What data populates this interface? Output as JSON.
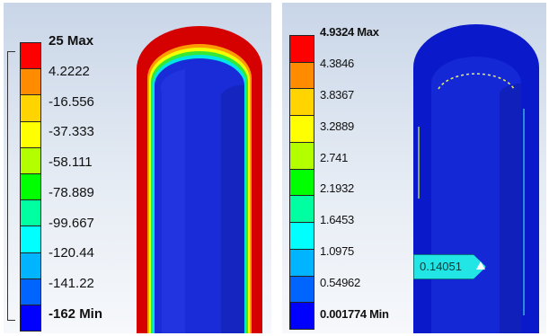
{
  "left_legend": {
    "max_label": "25 Max",
    "values": [
      "4.2222",
      "-16.556",
      "-37.333",
      "-58.111",
      "-78.889",
      "-99.667",
      "-120.44",
      "-141.22"
    ],
    "min_label": "-162 Min",
    "colors": [
      "#ff0000",
      "#ff8c00",
      "#ffd400",
      "#ffff00",
      "#b3ff00",
      "#00ff00",
      "#00ffa0",
      "#00ffff",
      "#00b4ff",
      "#0064ff",
      "#0000ff"
    ]
  },
  "right_legend": {
    "max_label": "4.9324 Max",
    "values": [
      "4.3846",
      "3.8367",
      "3.2889",
      "2.741",
      "2.1932",
      "1.6453",
      "1.0975",
      "0.54962"
    ],
    "min_label": "0.001774 Min",
    "colors": [
      "#ff0000",
      "#ff8c00",
      "#ffd400",
      "#ffff00",
      "#b3ff00",
      "#00ff00",
      "#00ffa0",
      "#00ffff",
      "#00b4ff",
      "#0064ff",
      "#0000ff"
    ]
  },
  "probe": {
    "label": "0.14051"
  },
  "model_colors": {
    "outer_wall": "#d50000",
    "inner_body": "#1a2bd8",
    "shell": "#0a1acb"
  }
}
